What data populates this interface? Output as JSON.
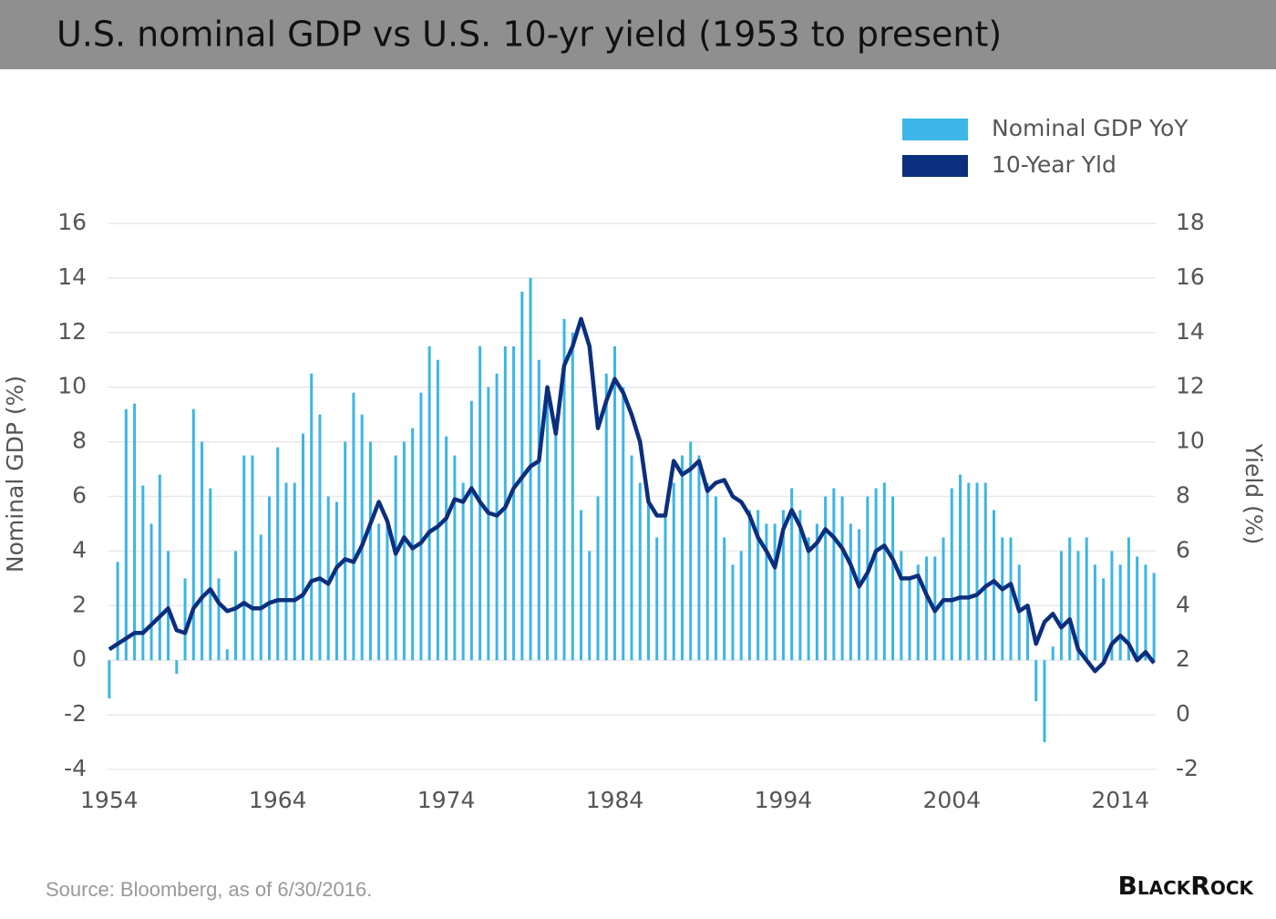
{
  "chart_data": {
    "type": "bar",
    "title": "U.S. nominal GDP vs U.S. 10-yr yield (1953 to present)",
    "ylabel": "Nominal GDP (%)",
    "y2label": "Yield (%)",
    "xlim": [
      1953.9,
      2016.1
    ],
    "xticks": [
      1954,
      1964,
      1974,
      1984,
      1994,
      2004,
      2014
    ],
    "ylim": [
      -4,
      16
    ],
    "yticks": [
      -4,
      -2,
      0,
      2,
      4,
      6,
      8,
      10,
      12,
      14,
      16
    ],
    "y2lim": [
      -2,
      18
    ],
    "y2ticks": [
      -2,
      0,
      2,
      4,
      6,
      8,
      10,
      12,
      14,
      16,
      18
    ],
    "grid": true,
    "legend": "top-right",
    "x": [
      1954,
      1954.5,
      1955,
      1955.5,
      1956,
      1956.5,
      1957,
      1957.5,
      1958,
      1958.5,
      1959,
      1959.5,
      1960,
      1960.5,
      1961,
      1961.5,
      1962,
      1962.5,
      1963,
      1963.5,
      1964,
      1964.5,
      1965,
      1965.5,
      1966,
      1966.5,
      1967,
      1967.5,
      1968,
      1968.5,
      1969,
      1969.5,
      1970,
      1970.5,
      1971,
      1971.5,
      1972,
      1972.5,
      1973,
      1973.5,
      1974,
      1974.5,
      1975,
      1975.5,
      1976,
      1976.5,
      1977,
      1977.5,
      1978,
      1978.5,
      1979,
      1979.5,
      1980,
      1980.5,
      1981,
      1981.5,
      1982,
      1982.5,
      1983,
      1983.5,
      1984,
      1984.5,
      1985,
      1985.5,
      1986,
      1986.5,
      1987,
      1987.5,
      1988,
      1988.5,
      1989,
      1989.5,
      1990,
      1990.5,
      1991,
      1991.5,
      1992,
      1992.5,
      1993,
      1993.5,
      1994,
      1994.5,
      1995,
      1995.5,
      1996,
      1996.5,
      1997,
      1997.5,
      1998,
      1998.5,
      1999,
      1999.5,
      2000,
      2000.5,
      2001,
      2001.5,
      2002,
      2002.5,
      2003,
      2003.5,
      2004,
      2004.5,
      2005,
      2005.5,
      2006,
      2006.5,
      2007,
      2007.5,
      2008,
      2008.5,
      2009,
      2009.5,
      2010,
      2010.5,
      2011,
      2011.5,
      2012,
      2012.5,
      2013,
      2013.5,
      2014,
      2014.5,
      2015,
      2015.5,
      2016
    ],
    "series": [
      {
        "name": "Nominal GDP YoY",
        "type": "bar",
        "color": "#3db5e6",
        "values": [
          -1.4,
          3.6,
          9.2,
          9.4,
          6.4,
          5.0,
          6.8,
          4.0,
          -0.5,
          3.0,
          9.2,
          8.0,
          6.3,
          3.0,
          0.4,
          4.0,
          7.5,
          7.5,
          4.6,
          6.0,
          7.8,
          6.5,
          6.5,
          8.3,
          10.5,
          9.0,
          6.0,
          5.8,
          8.0,
          9.8,
          9.0,
          8.0,
          5.0,
          5.0,
          7.5,
          8.0,
          8.5,
          9.8,
          11.5,
          11.0,
          8.2,
          7.5,
          6.5,
          9.5,
          11.5,
          10.0,
          10.5,
          11.5,
          11.5,
          13.5,
          14.0,
          11.0,
          9.5,
          8.5,
          12.5,
          12.0,
          5.5,
          4.0,
          6.0,
          10.5,
          11.5,
          10.0,
          7.5,
          6.5,
          6.0,
          4.5,
          5.5,
          6.5,
          7.5,
          8.0,
          7.5,
          6.5,
          6.0,
          4.5,
          3.5,
          4.0,
          5.5,
          5.5,
          5.0,
          5.0,
          5.5,
          6.3,
          5.5,
          4.5,
          5.0,
          6.0,
          6.3,
          6.0,
          5.0,
          4.8,
          6.0,
          6.3,
          6.5,
          6.0,
          4.0,
          3.0,
          3.5,
          3.8,
          3.8,
          4.5,
          6.3,
          6.8,
          6.5,
          6.5,
          6.5,
          5.5,
          4.5,
          4.5,
          3.5,
          2.0,
          -1.5,
          -3.0,
          0.5,
          4.0,
          4.5,
          4.0,
          4.5,
          3.5,
          3.0,
          4.0,
          3.5,
          4.5,
          3.8,
          3.5,
          3.2
        ]
      },
      {
        "name": "10-Year Yld",
        "type": "line",
        "axis": "y2",
        "color": "#0b2f7e",
        "values": [
          2.4,
          2.6,
          2.8,
          3.0,
          3.0,
          3.3,
          3.6,
          3.9,
          3.1,
          3.0,
          3.9,
          4.3,
          4.6,
          4.1,
          3.8,
          3.9,
          4.1,
          3.9,
          3.9,
          4.1,
          4.2,
          4.2,
          4.2,
          4.4,
          4.9,
          5.0,
          4.8,
          5.4,
          5.7,
          5.6,
          6.2,
          7.0,
          7.8,
          7.1,
          5.9,
          6.5,
          6.1,
          6.3,
          6.7,
          6.9,
          7.2,
          7.9,
          7.8,
          8.3,
          7.8,
          7.4,
          7.3,
          7.6,
          8.3,
          8.7,
          9.1,
          9.3,
          12.0,
          10.3,
          12.8,
          13.5,
          14.5,
          13.5,
          10.5,
          11.5,
          12.3,
          11.8,
          11.0,
          10.0,
          7.8,
          7.3,
          7.3,
          9.3,
          8.8,
          9.0,
          9.3,
          8.2,
          8.5,
          8.6,
          8.0,
          7.8,
          7.3,
          6.5,
          6.0,
          5.4,
          6.8,
          7.5,
          6.9,
          6.0,
          6.3,
          6.8,
          6.5,
          6.1,
          5.5,
          4.7,
          5.2,
          6.0,
          6.2,
          5.7,
          5.0,
          5.0,
          5.1,
          4.4,
          3.8,
          4.2,
          4.2,
          4.3,
          4.3,
          4.4,
          4.7,
          4.9,
          4.6,
          4.8,
          3.8,
          4.0,
          2.6,
          3.4,
          3.7,
          3.2,
          3.5,
          2.4,
          2.0,
          1.6,
          1.9,
          2.6,
          2.9,
          2.6,
          2.0,
          2.3,
          1.9
        ]
      }
    ]
  },
  "source": "Source: Bloomberg, as of 6/30/2016.",
  "logo": "BlackRock"
}
